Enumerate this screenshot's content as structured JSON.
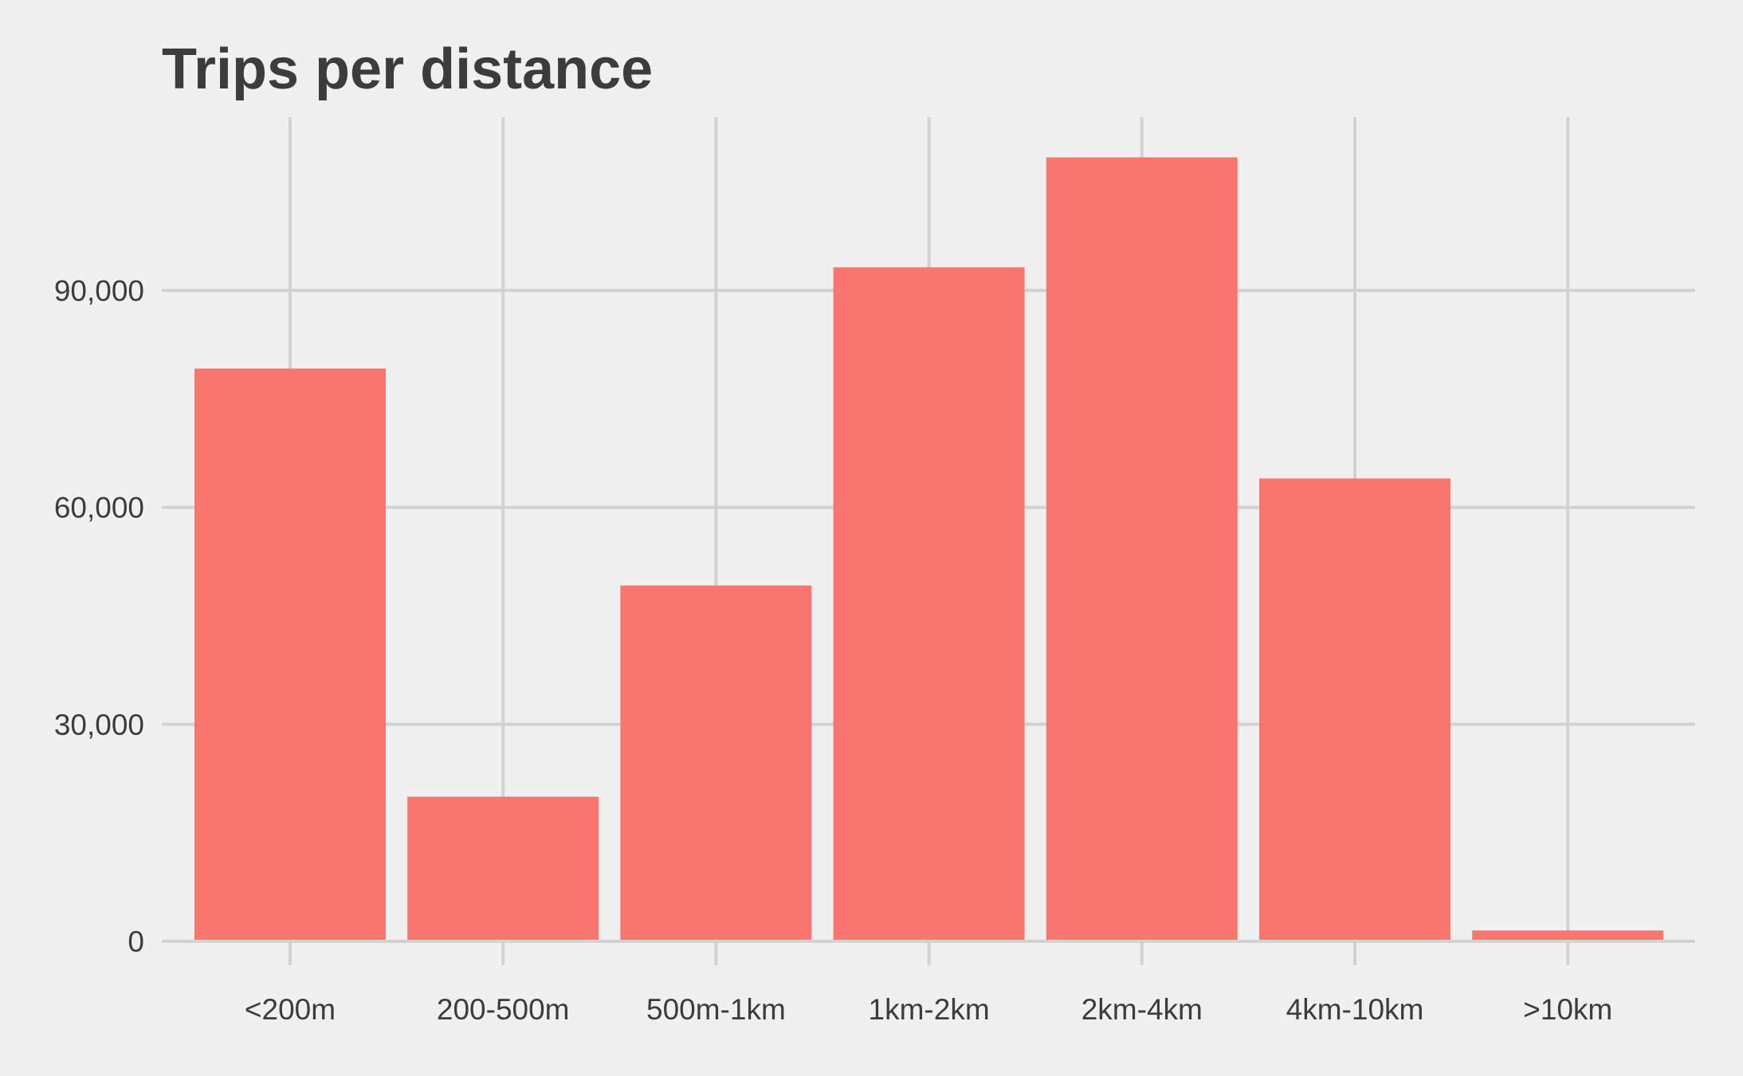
{
  "chart_data": {
    "type": "bar",
    "title": "Trips per distance",
    "xlabel": "",
    "ylabel": "",
    "categories": [
      "<200m",
      "200-500m",
      "500m-1km",
      "1km-2km",
      "2km-4km",
      "4km-10km",
      ">10km"
    ],
    "values": [
      79200,
      20000,
      49200,
      93200,
      108400,
      64000,
      1500
    ],
    "ylim": [
      0,
      115000
    ],
    "y_ticks": [
      0,
      30000,
      60000,
      90000
    ],
    "y_tick_labels": [
      "0",
      "30,000",
      "60,000",
      "90,000"
    ],
    "grid": true,
    "legend": "none",
    "colors": {
      "bar": "#f8766d",
      "background": "#f0f0f0",
      "grid": "#d2d2d2",
      "text": "#3c3c3c"
    }
  }
}
